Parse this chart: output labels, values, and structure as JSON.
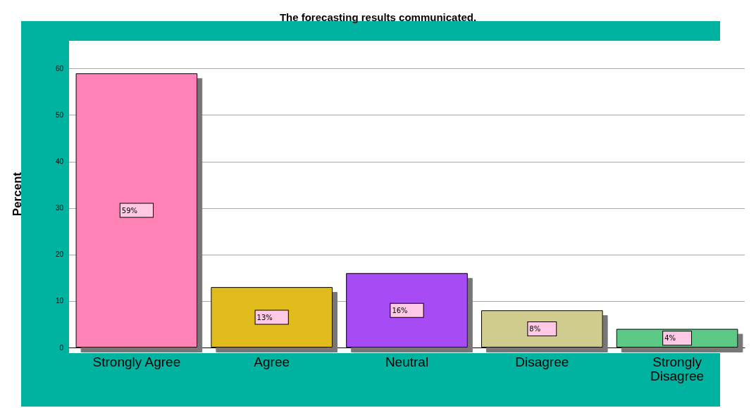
{
  "chart_data": {
    "type": "bar",
    "title": "The forecasting results communicated.",
    "ylabel": "Percent",
    "categories": [
      "Strongly Agree",
      "Agree",
      "Neutral",
      "Disagree",
      "Strongly\nDisagree"
    ],
    "values": [
      59,
      13,
      16,
      8,
      4
    ],
    "value_labels": [
      "59%",
      "13%",
      "16%",
      "8%",
      "4%"
    ],
    "colors": [
      "#ff83b6",
      "#e0bb1e",
      "#a74cf4",
      "#d0cb8e",
      "#5bc986"
    ],
    "ylim": [
      0,
      66
    ],
    "yticks": [
      0,
      10,
      20,
      30,
      40,
      50,
      60
    ],
    "grid": "y"
  }
}
